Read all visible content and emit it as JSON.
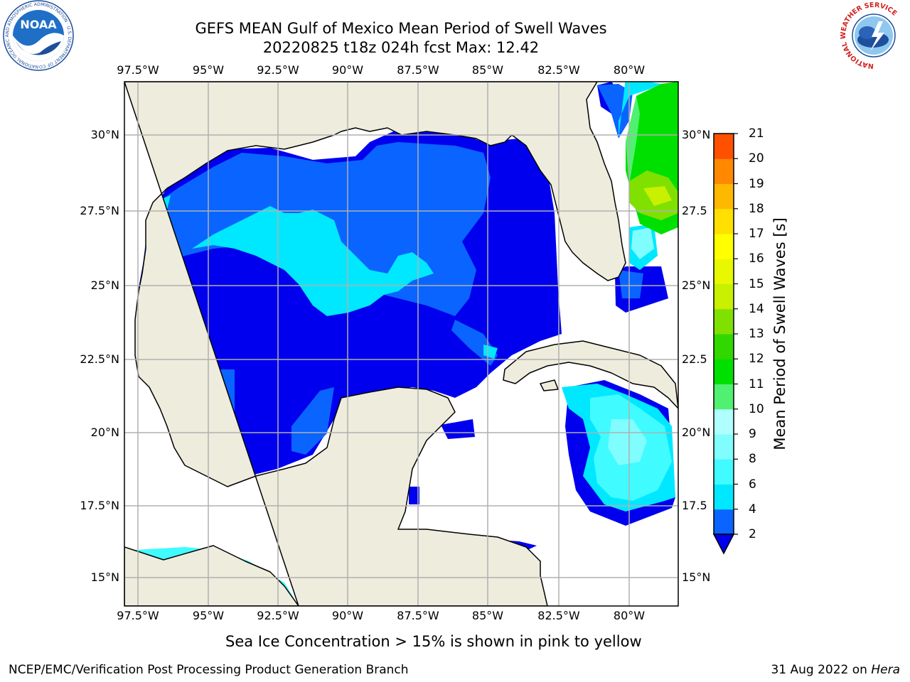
{
  "title": {
    "line1": "GEFS MEAN Gulf of Mexico Mean Period of Swell Waves",
    "line2": "20220825 t18z 024h fcst   Max: 12.42"
  },
  "map": {
    "longitude_labels": [
      "97.5°W",
      "95°W",
      "92.5°W",
      "90°W",
      "87.5°W",
      "85°W",
      "82.5°W",
      "80°W"
    ],
    "latitude_labels_left": [
      "30°N",
      "27.5°N",
      "25°N",
      "22.5°N",
      "20°N",
      "17.5°N",
      "15°N"
    ],
    "latitude_labels_right": [
      "30°N",
      "27.5",
      "25°N",
      "22.5",
      "20°N",
      "17.5",
      "15°N"
    ]
  },
  "colorbar": {
    "label": "Mean Period of Swell Waves [s]",
    "ticks": [
      "2",
      "4",
      "6",
      "8",
      "9",
      "10",
      "11",
      "12",
      "13",
      "14",
      "15",
      "16",
      "17",
      "18",
      "19",
      "20",
      "21"
    ],
    "colors": [
      "#0a64ff",
      "#00e8ff",
      "#40fbff",
      "#80fdff",
      "#b0ffff",
      "#50f070",
      "#00e000",
      "#30d800",
      "#80e000",
      "#c8f000",
      "#e8f800",
      "#ffff00",
      "#ffe000",
      "#ffb800",
      "#ff8800",
      "#ff5000",
      "#ff2000",
      "#ff0000"
    ],
    "under_color": "#0000ee"
  },
  "note": "Sea Ice Concentration > 15% is shown in pink to yellow",
  "footer": {
    "left": "NCEP/EMC/Verification Post Processing Product Generation Branch",
    "date": "31 Aug 2022 on ",
    "machine": "Hera"
  },
  "logos": {
    "noaa_text": "NOAA",
    "noaa_ring_text": "NATIONAL OCEANIC AND ATMOSPHERIC ADMINISTRATION · U.S. DEPARTMENT OF COMMERCE",
    "nws_ring_text": "NATIONAL WEATHER SERVICE"
  }
}
